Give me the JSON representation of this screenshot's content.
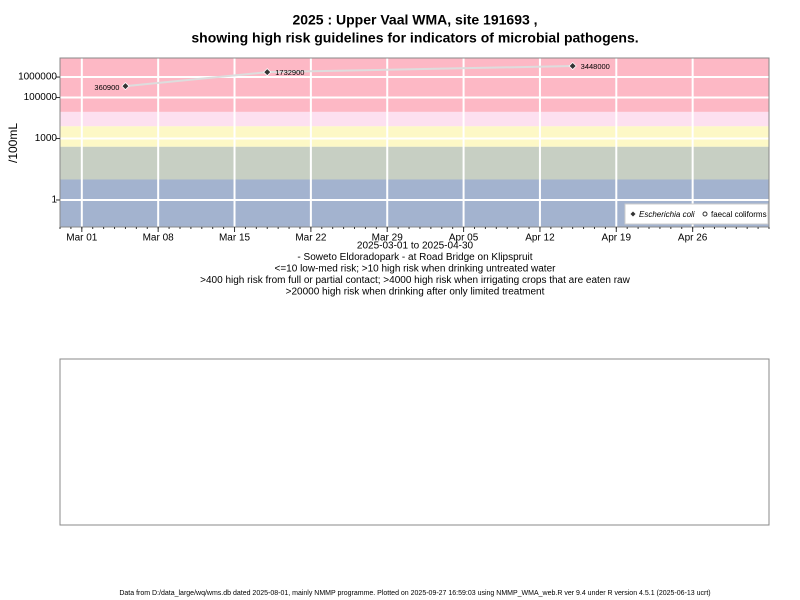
{
  "chart_data": {
    "type": "line",
    "title_lines": [
      "2025 : Upper Vaal WMA, site 191693 ,",
      "showing high risk guidelines for indicators of microbial pathogens."
    ],
    "y_label": "/100mL",
    "log_scale": true,
    "grid": true,
    "x": [
      "2025-03-05",
      "2025-03-18",
      "2025-04-15"
    ],
    "xlim": [
      "2025-02-27",
      "2025-05-03"
    ],
    "xticks": [
      {
        "value": "2025-03-01",
        "label": "Mar 01"
      },
      {
        "value": "2025-03-08",
        "label": "Mar 08"
      },
      {
        "value": "2025-03-15",
        "label": "Mar 15"
      },
      {
        "value": "2025-03-22",
        "label": "Mar 22"
      },
      {
        "value": "2025-03-29",
        "label": "Mar 29"
      },
      {
        "value": "2025-04-05",
        "label": "Apr 05"
      },
      {
        "value": "2025-04-12",
        "label": "Apr 12"
      },
      {
        "value": "2025-04-19",
        "label": "Apr 19"
      },
      {
        "value": "2025-04-26",
        "label": "Apr 26"
      }
    ],
    "ylim": [
      0.048,
      8500000
    ],
    "yticks": [
      1,
      1000,
      100000,
      1000000
    ],
    "bands": [
      {
        "upto": 10,
        "color": "#a3b3cf"
      },
      {
        "upto": 400,
        "color": "#c7cfc3"
      },
      {
        "upto": 4000,
        "color": "#fdf8c6"
      },
      {
        "upto": 20000,
        "color": "#fde0f0"
      },
      {
        "upto": 8500000,
        "color": "#fdb8c5"
      }
    ],
    "line_color": "#dddddd",
    "legend_position": "bottom-right",
    "series": [
      {
        "name": "Escherichia coli",
        "color": "#333333",
        "marker": "diamond",
        "values": [
          360900,
          1732900,
          3448000
        ]
      },
      {
        "name": "faecal coliforms",
        "color": "#333333",
        "marker": "circle",
        "values": [
          null,
          null,
          null
        ]
      }
    ],
    "notes": [
      "2025-03-01 to 2025-04-30",
      "- Soweto Eldoradopark - at Road Bridge on Klipspruit",
      "<=10 low-med risk; >10 high risk when drinking untreated water",
      ">400 high risk from full or partial contact; >4000 high risk when irrigating crops that are eaten raw",
      ">20000 high risk when drinking after only limited treatment"
    ],
    "footer": "Data from D:/data_large/wq/wms.db dated 2025-08-01, mainly NMMP programme. Plotted on 2025-09-27 16:59:03 using NMMP_WMA_web.R ver 9.4 under R version 4.5.1 (2025-06-13 ucrt)"
  }
}
